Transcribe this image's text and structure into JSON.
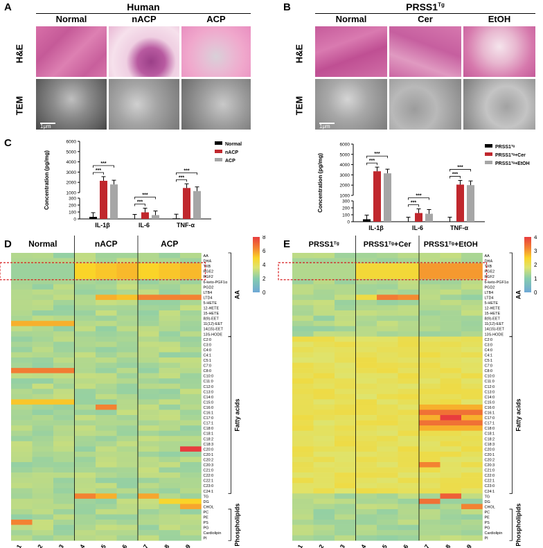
{
  "panelA": {
    "letter": "A",
    "group": "Human",
    "columns": [
      "Normal",
      "nACP",
      "ACP"
    ],
    "rows": [
      "H&E",
      "TEM"
    ],
    "scale_label": "1μm"
  },
  "panelB": {
    "letter": "B",
    "group": "PRSS1",
    "group_sup": "Tg",
    "columns": [
      "Normal",
      "Cer",
      "EtOH"
    ],
    "rows": [
      "H&E",
      "TEM"
    ],
    "scale_label": "1μm"
  },
  "panelC": {
    "letter": "C"
  },
  "panelD": {
    "letter": "D",
    "groups": [
      "Normal",
      "nACP",
      "ACP"
    ]
  },
  "panelE": {
    "letter": "E",
    "groups": [
      "PRSS1^Tg",
      "PRSS1^Tg+Cer",
      "PRSS1^Tg+EtOH"
    ]
  },
  "chart_data": [
    {
      "type": "bar",
      "ylabel": "Concentration (pg/mg)",
      "categories": [
        "IL-1β",
        "IL-6",
        "TNF-α"
      ],
      "yticks": [
        0,
        100,
        200,
        300,
        1000,
        2000,
        3000,
        4000,
        5000,
        6000
      ],
      "series": [
        {
          "name": "Normal",
          "color": "#000000",
          "values": [
            30,
            5,
            8
          ]
        },
        {
          "name": "nACP",
          "color": "#c0272d",
          "values": [
            2150,
            95,
            1450
          ]
        },
        {
          "name": "ACP",
          "color": "#a6a6a6",
          "values": [
            1800,
            55,
            1150
          ]
        }
      ],
      "significance": "***"
    },
    {
      "type": "bar",
      "ylabel": "Concentration (pg/mg)",
      "categories": [
        "IL-1β",
        "IL-6",
        "TNF-α"
      ],
      "yticks": [
        0,
        100,
        200,
        300,
        1000,
        2000,
        3000,
        4000,
        5000,
        6000
      ],
      "series": [
        {
          "name": "PRSS1^Tg",
          "color": "#000000",
          "values": [
            35,
            5,
            5
          ]
        },
        {
          "name": "PRSS1^Tg+Cer",
          "color": "#c0272d",
          "values": [
            3350,
            125,
            2050
          ]
        },
        {
          "name": "PRSS1^Tg+EtOH",
          "color": "#a6a6a6",
          "values": [
            3150,
            115,
            2000
          ]
        }
      ],
      "significance": "***"
    },
    {
      "type": "heatmap",
      "colorbar": {
        "min": 0,
        "max": 8,
        "ticks": [
          0,
          2,
          4,
          6,
          8
        ]
      },
      "columns": [
        "sample 1",
        "sample 2",
        "sample 3",
        "sample 4",
        "sample 5",
        "sample 6",
        "sample 7",
        "sample 8",
        "sample 9"
      ],
      "rows": [
        "AA",
        "DHA",
        "TXB",
        "PGE2",
        "PGF2",
        "6-keto-PGF1α",
        "PGD2",
        "LTB4",
        "LTD4",
        "5-HETE",
        "12-HETE",
        "15-HETE",
        "8(9)-EET",
        "11(12)-EET",
        "14(15)-EET",
        "13S-HODE",
        "C2:0",
        "C3:0",
        "C4:0",
        "C4:1",
        "C5:1",
        "C7:0",
        "C8:0",
        "C10:0",
        "C11:0",
        "C12:0",
        "C13:0",
        "C14:0",
        "C15:0",
        "C16:0",
        "C16:1",
        "C17:0",
        "C17:1",
        "C18:0",
        "C18:1",
        "C18:2",
        "C18:3",
        "C20:0",
        "C20:1",
        "C20:2",
        "C20:3",
        "C21:0",
        "C22:0",
        "C22:1",
        "C23:0",
        "C24:1",
        "TG",
        "DG",
        "CHOL",
        "PC",
        "PE",
        "PS",
        "PG",
        "Cardiolipin",
        "PI"
      ],
      "categories": [
        {
          "name": "AA",
          "rows": [
            0,
            15
          ]
        },
        {
          "name": "Fatty acids",
          "rows": [
            16,
            45
          ]
        },
        {
          "name": "Phospholipids",
          "rows": [
            49,
            54
          ]
        }
      ]
    },
    {
      "type": "heatmap",
      "colorbar": {
        "min": 0,
        "max": 4,
        "ticks": [
          0,
          1,
          2,
          3,
          4
        ]
      },
      "columns": [
        "sample 1",
        "sample 2",
        "sample 3",
        "sample 4",
        "sample 5",
        "sample 6",
        "sample 7",
        "sample 8",
        "sample 9"
      ],
      "rows": [
        "AA",
        "DHA",
        "TXB",
        "PGE2",
        "PGF2",
        "6-keto-PGF1α",
        "PGD2",
        "LTB4",
        "LTD4",
        "5-HETE",
        "12-HETE",
        "15-HETE",
        "8(9)-EET",
        "11(12)-EET",
        "14(15)-EET",
        "13S-HODE",
        "C2:0",
        "C3:0",
        "C4:0",
        "C4:1",
        "C5:1",
        "C7:0",
        "C8:0",
        "C10:0",
        "C11:0",
        "C12:0",
        "C13:0",
        "C14:0",
        "C15:0",
        "C16:0",
        "C16:1",
        "C17:0",
        "C17:1",
        "C18:0",
        "C18:1",
        "C18:2",
        "C18:3",
        "C20:0",
        "C20:1",
        "C20:2",
        "C20:3",
        "C21:0",
        "C22:0",
        "C22:1",
        "C23:0",
        "C24:1",
        "TG",
        "DG",
        "CHOL",
        "PC",
        "PE",
        "PS",
        "PG",
        "Cardiolipin",
        "PI"
      ],
      "categories": [
        {
          "name": "AA",
          "rows": [
            0,
            15
          ]
        },
        {
          "name": "Fatty acids",
          "rows": [
            16,
            45
          ]
        },
        {
          "name": "Phospholipids",
          "rows": [
            49,
            54
          ]
        }
      ]
    }
  ]
}
